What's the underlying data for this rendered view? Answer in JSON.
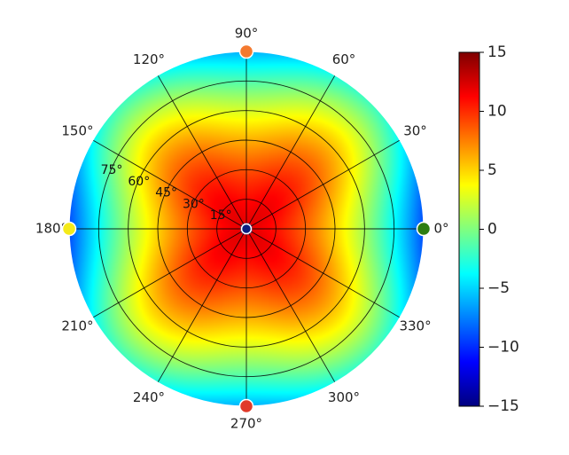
{
  "chart_data": {
    "type": "heatmap",
    "projection": "polar",
    "title": "",
    "angle_ticks": [
      "0°",
      "30°",
      "60°",
      "90°",
      "120°",
      "150°",
      "180°",
      "210°",
      "240°",
      "270°",
      "300°",
      "330°"
    ],
    "angle_tick_values": [
      0,
      30,
      60,
      90,
      120,
      150,
      180,
      210,
      240,
      270,
      300,
      330
    ],
    "radial_ticks": [
      "15°",
      "30°",
      "45°",
      "60°",
      "75°"
    ],
    "radial_tick_values": [
      15,
      30,
      45,
      60,
      75
    ],
    "rlim": [
      0,
      90
    ],
    "grid": true,
    "field": {
      "description_of_values": "value at angle phi (deg) and radius theta (deg)",
      "center_value": 12,
      "edge_value_at_0_180": -9,
      "edge_value_at_90_270": -6,
      "edge_value_diagonals": -2
    },
    "markers": [
      {
        "angle": 0,
        "r": 90,
        "color": "#2e7d12"
      },
      {
        "angle": 90,
        "r": 90,
        "color": "#f47a30"
      },
      {
        "angle": 180,
        "r": 90,
        "color": "#f4ea1a"
      },
      {
        "angle": 270,
        "r": 90,
        "color": "#e03a2a"
      },
      {
        "angle": 0,
        "r": 0,
        "color": "#0a1e80"
      }
    ],
    "colorbar": {
      "colormap": "jet",
      "min": -15,
      "max": 15,
      "ticks": [
        "15",
        "10",
        "5",
        "0",
        "−5",
        "−10",
        "−15"
      ],
      "tick_values": [
        15,
        10,
        5,
        0,
        -5,
        -10,
        -15
      ]
    }
  }
}
